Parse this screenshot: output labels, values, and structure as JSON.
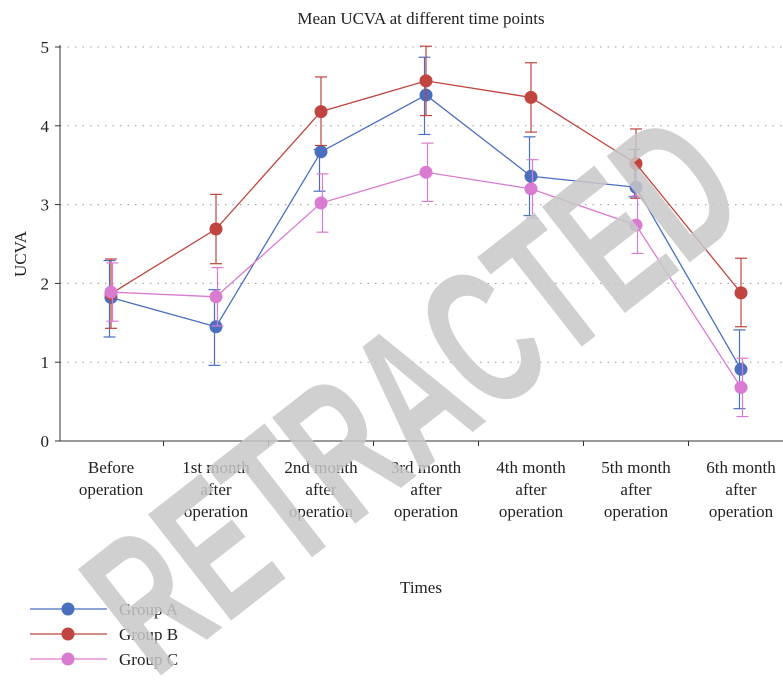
{
  "chart_data": {
    "type": "line",
    "title": "Mean UCVA at different time points",
    "xlabel": "Times",
    "ylabel": "UCVA",
    "ylim": [
      0,
      5
    ],
    "yticks": [
      0,
      1,
      2,
      3,
      4,
      5
    ],
    "grid": "horizontal dotted",
    "legend_position": "bottom-left",
    "categories": [
      [
        "Before",
        "operation"
      ],
      [
        "1st month",
        "after",
        "operation"
      ],
      [
        "2nd month",
        "after",
        "operation"
      ],
      [
        "3rd month",
        "after",
        "operation"
      ],
      [
        "4th month",
        "after",
        "operation"
      ],
      [
        "5th month",
        "after",
        "operation"
      ],
      [
        "6th month",
        "after",
        "operation"
      ]
    ],
    "series": [
      {
        "name": "Group A",
        "color": "#4a6fbf",
        "values": [
          1.82,
          1.45,
          3.67,
          4.39,
          3.36,
          3.22,
          0.91
        ],
        "err_low": [
          0.5,
          0.49,
          0.5,
          0.5,
          0.5,
          0.12,
          0.5
        ],
        "err_high": [
          0.47,
          0.47,
          0.03,
          0.48,
          0.5,
          0.48,
          0.5
        ]
      },
      {
        "name": "Group B",
        "color": "#c0443f",
        "values": [
          1.87,
          2.69,
          4.18,
          4.57,
          4.36,
          3.52,
          1.88
        ],
        "err_low": [
          0.44,
          0.44,
          0.43,
          0.44,
          0.44,
          0.44,
          0.43
        ],
        "err_high": [
          0.44,
          0.44,
          0.44,
          0.44,
          0.44,
          0.44,
          0.44
        ]
      },
      {
        "name": "Group C",
        "color": "#d97bd1",
        "values": [
          1.89,
          1.83,
          3.02,
          3.41,
          3.2,
          2.74,
          0.68
        ],
        "err_low": [
          0.37,
          0.37,
          0.37,
          0.37,
          0.37,
          0.36,
          0.37
        ],
        "err_high": [
          0.37,
          0.37,
          0.37,
          0.37,
          0.37,
          0.37,
          0.37
        ]
      }
    ]
  },
  "watermark": "RETRACTED"
}
